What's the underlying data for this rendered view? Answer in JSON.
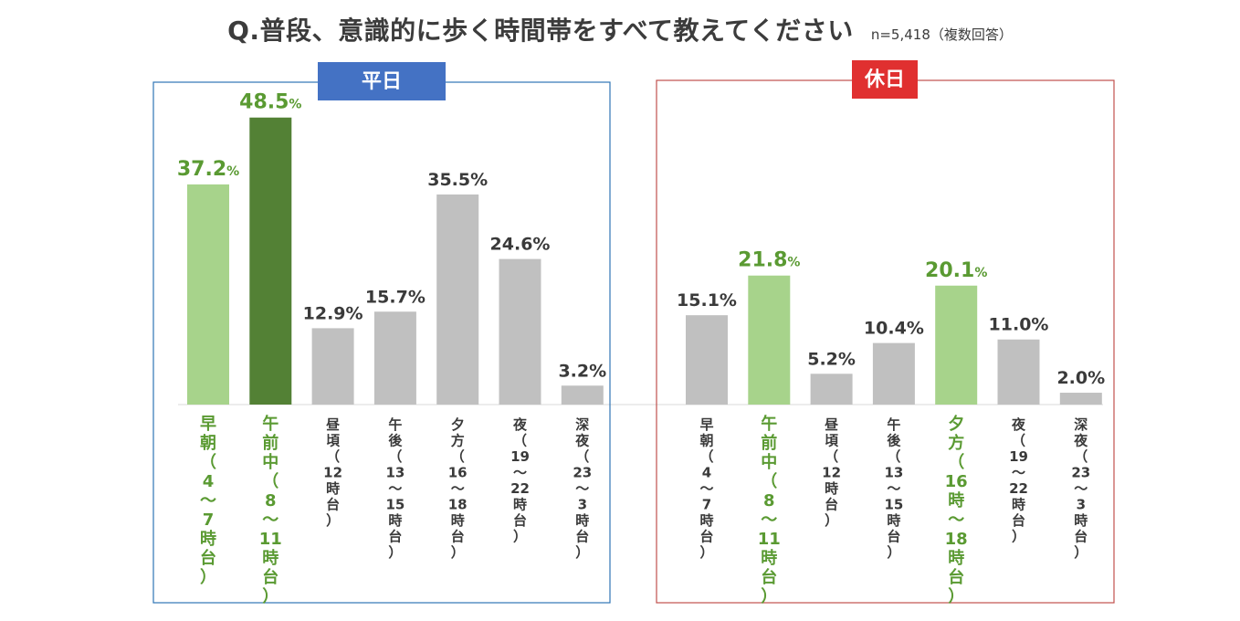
{
  "title": "Q.普段、意識的に歩く時間帯をすべて教えてください",
  "note": "n=5,418（複数回答）",
  "unit": "%",
  "colors": {
    "grey": "#c0c0c0",
    "light_green": "#a7d38b",
    "dark_green": "#538135",
    "green_text": "#5a9a32",
    "label_text": "#3a3a3a",
    "weekday_tag": "#4472c4",
    "weekday_border": "#2e75b6",
    "holiday_tag": "#e03030",
    "holiday_border": "#c0504d"
  },
  "chart_data": [
    {
      "type": "bar",
      "title": "平日",
      "ylim": [
        0,
        50
      ],
      "categories": [
        "早朝（4～7時台）",
        "午前中（8～11時台）",
        "昼頃（12時台）",
        "午後（13～15時台）",
        "夕方（16～18時台）",
        "夜（19～22時台）",
        "深夜（23～3時台）"
      ],
      "category_lines": [
        [
          "早",
          "朝",
          "（",
          "4",
          "～",
          "7",
          "時",
          "台",
          "）"
        ],
        [
          "午",
          "前",
          "中",
          "（",
          "8",
          "～",
          "11",
          "時",
          "台",
          "）"
        ],
        [
          "昼",
          "頃",
          "（",
          "12",
          "時",
          "台",
          "）"
        ],
        [
          "午",
          "後",
          "（",
          "13",
          "～",
          "15",
          "時",
          "台",
          "）"
        ],
        [
          "夕",
          "方",
          "（",
          "16",
          "～",
          "18",
          "時",
          "台",
          "）"
        ],
        [
          "夜",
          "（",
          "19",
          "～",
          "22",
          "時",
          "台",
          "）"
        ],
        [
          "深",
          "夜",
          "（",
          "23",
          "～",
          "3",
          "時",
          "台",
          "）"
        ]
      ],
      "values": [
        37.2,
        48.5,
        12.9,
        15.7,
        35.5,
        24.6,
        3.2
      ],
      "bar_colors": [
        "light_green",
        "dark_green",
        "grey",
        "grey",
        "grey",
        "grey",
        "grey"
      ],
      "highlight": [
        true,
        true,
        false,
        false,
        false,
        false,
        false
      ]
    },
    {
      "type": "bar",
      "title": "休日",
      "ylim": [
        0,
        50
      ],
      "categories": [
        "早朝（4～7時台）",
        "午前中（8～11時台）",
        "昼頃（12時台）",
        "午後（13～15時台）",
        "夕方（16時～18時台）",
        "夜（19～22時台）",
        "深夜（23～3時台）"
      ],
      "category_lines": [
        [
          "早",
          "朝",
          "（",
          "4",
          "～",
          "7",
          "時",
          "台",
          "）"
        ],
        [
          "午",
          "前",
          "中",
          "（",
          "8",
          "～",
          "11",
          "時",
          "台",
          "）"
        ],
        [
          "昼",
          "頃",
          "（",
          "12",
          "時",
          "台",
          "）"
        ],
        [
          "午",
          "後",
          "（",
          "13",
          "～",
          "15",
          "時",
          "台",
          "）"
        ],
        [
          "夕",
          "方",
          "（",
          "16",
          "時",
          "～",
          "18",
          "時",
          "台",
          "）"
        ],
        [
          "夜",
          "（",
          "19",
          "～",
          "22",
          "時",
          "台",
          "）"
        ],
        [
          "深",
          "夜",
          "（",
          "23",
          "～",
          "3",
          "時",
          "台",
          "）"
        ]
      ],
      "values": [
        15.1,
        21.8,
        5.2,
        10.4,
        20.1,
        11.0,
        2.0
      ],
      "bar_colors": [
        "grey",
        "light_green",
        "grey",
        "grey",
        "light_green",
        "grey",
        "grey"
      ],
      "highlight": [
        false,
        true,
        false,
        false,
        true,
        false,
        false
      ]
    }
  ]
}
